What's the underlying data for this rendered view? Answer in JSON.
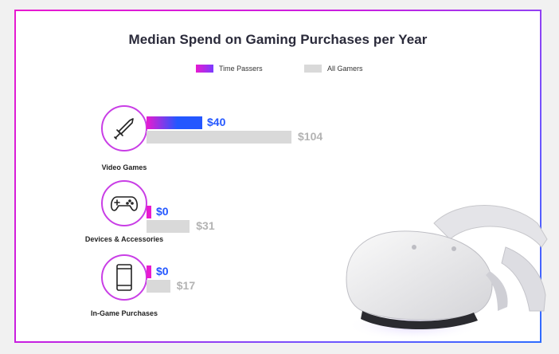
{
  "chart_data": {
    "type": "bar",
    "title": "Median Spend on Gaming Purchases per Year",
    "categories": [
      "Video Games",
      "Devices & Accessories",
      "In-Game Purchases"
    ],
    "series": [
      {
        "name": "Time Passers",
        "values": [
          40,
          0,
          0
        ],
        "labels": [
          "$40",
          "$0",
          "$0"
        ]
      },
      {
        "name": "All Gamers",
        "values": [
          104,
          31,
          17
        ],
        "labels": [
          "$104",
          "$31",
          "$17"
        ]
      }
    ],
    "orientation": "horizontal",
    "xlim": [
      0,
      104
    ],
    "grid": false,
    "legend_position": "top"
  },
  "colors": {
    "time_passers_start": "#e81ad0",
    "time_passers_end": "#2457ff",
    "all_gamers": "#d9d9d9",
    "frame_gradient_start": "#e81ad0",
    "frame_gradient_end": "#2d6cff"
  },
  "icons": [
    "sword-icon",
    "gamepad-icon",
    "smartphone-icon"
  ]
}
